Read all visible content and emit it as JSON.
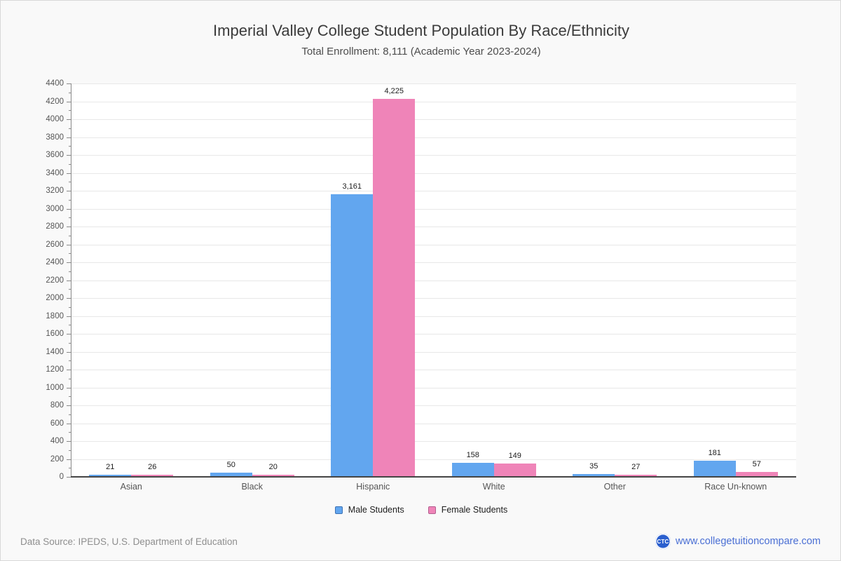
{
  "title": "Imperial Valley College Student Population By Race/Ethnicity",
  "subtitle": "Total Enrollment: 8,111 (Academic Year 2023-2024)",
  "chart_data": {
    "type": "bar",
    "title": "Imperial Valley College Student Population By Race/Ethnicity",
    "subtitle": "Total Enrollment: 8,111 (Academic Year 2023-2024)",
    "categories": [
      "Asian",
      "Black",
      "Hispanic",
      "White",
      "Other",
      "Race Un-known"
    ],
    "series": [
      {
        "name": "Male Students",
        "color": "#62a6ef",
        "border_color": "#3d72b4",
        "values": [
          21,
          50,
          3161,
          158,
          35,
          181
        ],
        "labels": [
          "21",
          "50",
          "3,161",
          "158",
          "35",
          "181"
        ]
      },
      {
        "name": "Female Students",
        "color": "#ef84b8",
        "border_color": "#b25e8e",
        "values": [
          26,
          20,
          4225,
          149,
          27,
          57
        ],
        "labels": [
          "26",
          "20",
          "4,225",
          "149",
          "27",
          "57"
        ]
      }
    ],
    "xlabel": "",
    "ylabel": "",
    "ylim": [
      0,
      4400
    ],
    "ytick_step": 200,
    "ytick_minor_step": 100,
    "grid": "horizontal",
    "legend_position": "bottom"
  },
  "footer": {
    "source": "Data Source: IPEDS, U.S. Department of Education",
    "logo": "CTC",
    "website": "www.collegetuitioncompare.com"
  }
}
